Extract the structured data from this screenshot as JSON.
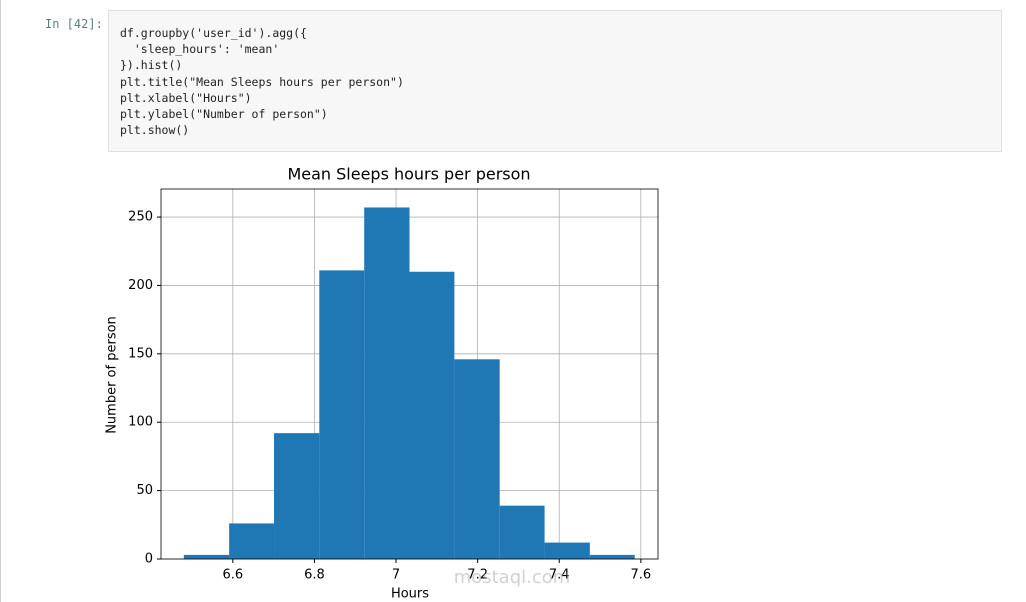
{
  "cell": {
    "prompt": "In [42]:",
    "code": [
      "df.groupby('user_id').agg({",
      "  'sleep_hours': 'mean'",
      "}).hist()",
      "plt.title(\"Mean Sleeps hours per person\")",
      "plt.xlabel(\"Hours\")",
      "plt.ylabel(\"Number of person\")",
      "plt.show()"
    ]
  },
  "watermark": "mostaql.com",
  "chart_data": {
    "type": "histogram",
    "title": "Mean Sleeps hours per person",
    "x_label": "Hours",
    "y_label": "Number of person",
    "bins": [
      6.48,
      6.591,
      6.701,
      6.812,
      6.922,
      7.033,
      7.143,
      7.254,
      7.364,
      7.475,
      7.585
    ],
    "values": [
      3,
      26,
      92,
      211,
      257,
      210,
      146,
      39,
      12,
      3
    ],
    "color": "#1f77b4",
    "xlim": [
      6.424,
      7.642
    ],
    "ylim": [
      0,
      270.5
    ],
    "xticks": [
      6.6,
      6.8,
      7.0,
      7.2,
      7.4,
      7.6
    ],
    "yticks": [
      0,
      50,
      100,
      150,
      200,
      250
    ],
    "grid": true
  }
}
